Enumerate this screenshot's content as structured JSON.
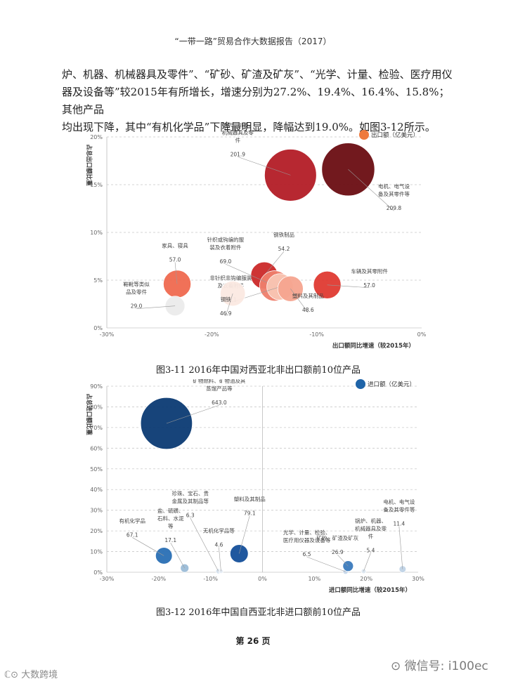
{
  "page_header": "“一带一路”贸易合作大数据报告（2017）",
  "paragraph_lines": [
    "炉、机器、机械器具及零件”、“矿砂、矿渣及矿灰”、“光学、计量、检验、医疗用仪",
    "器及设备等”较2015年有所增长，增速分别为27.2%、19.4%、16.4%、15.8%；其他产品",
    "均出现下降，其中“有机化学品”下降最明显，降幅达到19.0%。如图3-12所示。"
  ],
  "page_number": "第 26 页",
  "watermark_left": "大数跨境",
  "watermark_right": "微信号: i100ec",
  "chart_data": [
    {
      "type": "scatter",
      "caption": "图3-11   2016年中国对西亚北非出口额前10位产品",
      "ylabel": "占总出口额比重",
      "xlabel": "出口额同比增速（较2015年）",
      "legend": "出口额（亿美元）",
      "legend_position": "top-right",
      "xlim": [
        -30,
        0
      ],
      "ylim": [
        0,
        20
      ],
      "x_ticks": [
        "-30%",
        "-20%",
        "-10%",
        "0%"
      ],
      "y_ticks": [
        "0%",
        "5%",
        "10%",
        "15%",
        "20%"
      ],
      "grid": "horizontal-dashed",
      "points": [
        {
          "label": "锅炉、机器、机械器具及零件",
          "x": -12.5,
          "y": 16.0,
          "size": 201.9,
          "color": "#b41d26"
        },
        {
          "label": "电机、电气设备及其零件等",
          "x": -7.0,
          "y": 16.6,
          "size": 209.8,
          "color": "#6b0d13"
        },
        {
          "label": "钢铁制品",
          "x": -15.0,
          "y": 5.5,
          "size": 54.2,
          "color": "#cc2a2a"
        },
        {
          "label": "针织或钩编的服装及衣着附件",
          "x": -14.0,
          "y": 4.4,
          "size": 69.0,
          "color": "#ef7f6c"
        },
        {
          "label": "车辆及其零附件",
          "x": -9.0,
          "y": 4.5,
          "size": 57.0,
          "color": "#e03a32"
        },
        {
          "label": "家具、寝具",
          "x": -23.3,
          "y": 4.6,
          "size": 57.0,
          "color": "#f06a50"
        },
        {
          "label": "非针织非钩编服装及衣着附件",
          "x": -13.5,
          "y": 4.3,
          "size": 52.1,
          "color": "#f9c6b4"
        },
        {
          "label": "塑料及其制品",
          "x": -12.5,
          "y": 4.1,
          "size": 48.6,
          "color": "#f6a590"
        },
        {
          "label": "钢铁",
          "x": -18.0,
          "y": 3.6,
          "size": 46.9,
          "color": "#fbe9e2"
        },
        {
          "label": "鞋靴等类似品及零件",
          "x": -23.5,
          "y": 2.3,
          "size": 29.0,
          "color": "#ececec"
        }
      ]
    },
    {
      "type": "scatter",
      "caption": "图3-12   2016年中国自西亚北非进口额前10位产品",
      "ylabel": "占总进口额比重",
      "xlabel": "进口额同比增速（较2015年）",
      "legend": "进口额（亿美元）",
      "legend_position": "top-right",
      "xlim": [
        -30,
        30
      ],
      "ylim": [
        0,
        90
      ],
      "x_ticks": [
        "-30%",
        "-20%",
        "-10%",
        "0%",
        "10%",
        "20%",
        "30%"
      ],
      "y_ticks": [
        "0%",
        "10%",
        "20%",
        "30%",
        "40%",
        "50%",
        "60%",
        "70%",
        "80%",
        "90%"
      ],
      "grid": "horizontal-dashed",
      "points": [
        {
          "label": "矿物燃料、矿物油及其蒸馏产品等",
          "x": -18.5,
          "y": 72.0,
          "size": 643.0,
          "color": "#0b3a73"
        },
        {
          "label": "有机化学品",
          "x": -19.0,
          "y": 8.0,
          "size": 67.1,
          "color": "#2a6fb5"
        },
        {
          "label": "盐、硫磺、石料、水泥等",
          "x": -15.0,
          "y": 2.0,
          "size": 17.1,
          "color": "#9bbcd8"
        },
        {
          "label": "珍珠、宝石、贵金属及其制品等",
          "x": -8.5,
          "y": 0.5,
          "size": 6.3,
          "color": "#d6e2ee"
        },
        {
          "label": "无机化学品等",
          "x": -8.0,
          "y": 0.5,
          "size": 4.6,
          "color": "#e6edf5"
        },
        {
          "label": "塑料及其制品",
          "x": -4.5,
          "y": 9.0,
          "size": 79.1,
          "color": "#15509a"
        },
        {
          "label": "光学、计量、检验、医疗用仪器及设备等",
          "x": 16.0,
          "y": 0.3,
          "size": 6.5,
          "color": "#c8d8ea"
        },
        {
          "label": "矿砂、矿渣及矿灰",
          "x": 16.5,
          "y": 3.0,
          "size": 26.9,
          "color": "#3a7bbd"
        },
        {
          "label": "锅炉、机器、机械器具及零件",
          "x": 19.5,
          "y": 0.5,
          "size": 5.4,
          "color": "#dde7f1"
        },
        {
          "label": "电机、电气设备及其零件等",
          "x": 27.0,
          "y": 1.5,
          "size": 11.4,
          "color": "#c0d3e6"
        }
      ]
    }
  ]
}
